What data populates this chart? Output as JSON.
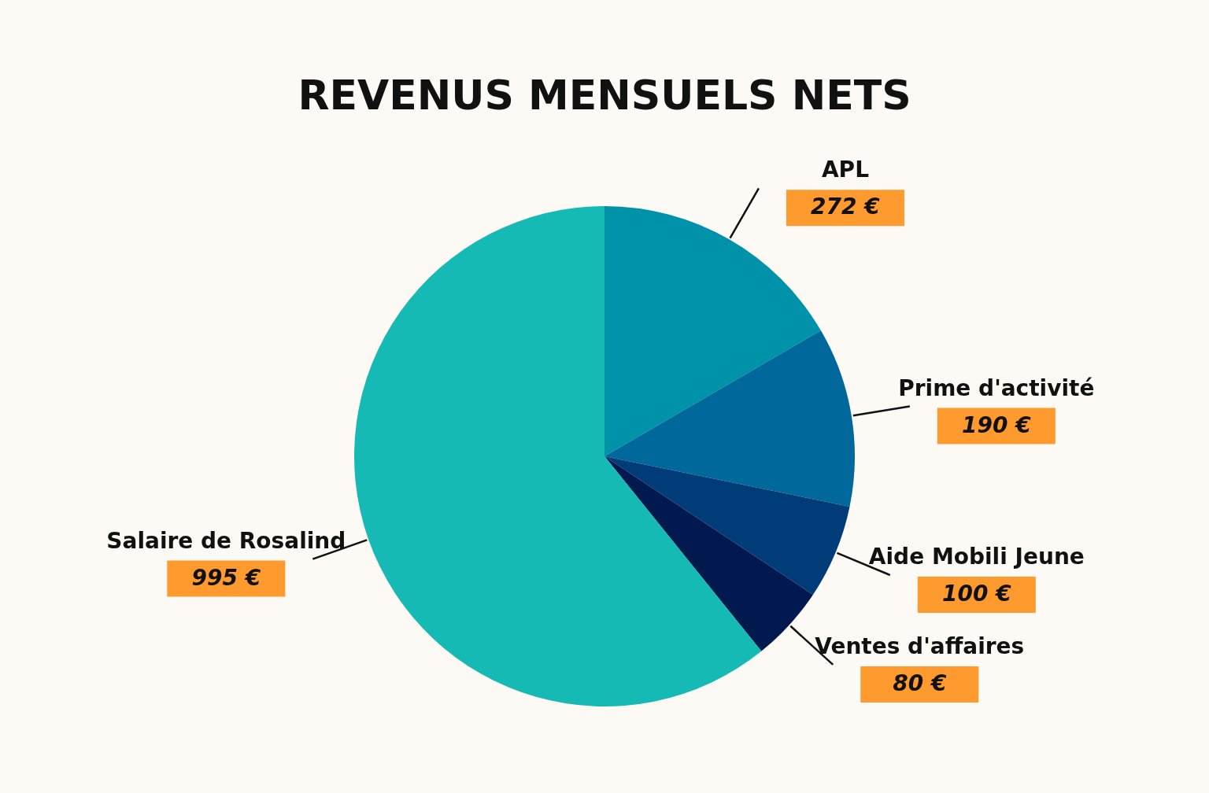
{
  "chart_data": {
    "type": "pie",
    "title": "REVENUS MENSUELS NETS",
    "categories": [
      "APL",
      "Prime d'activité",
      "Aide Mobili Jeune",
      "Ventes d'affaires",
      "Salaire de Rosalind"
    ],
    "values": [
      272,
      190,
      100,
      80,
      995
    ],
    "value_labels": [
      "272 €",
      "190 €",
      "100 €",
      "80 €",
      "995 €"
    ],
    "colors": [
      "#0092a8",
      "#00689a",
      "#003d78",
      "#001a4f",
      "#16bab4"
    ]
  }
}
